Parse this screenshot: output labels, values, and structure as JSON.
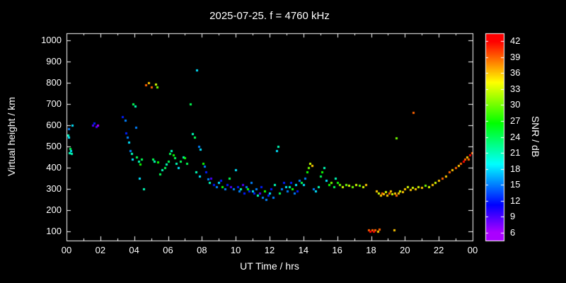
{
  "title": "2025-07-25. f = 4760 kHz",
  "colors": {
    "background": "#000000",
    "foreground": "#ffffff",
    "snr_low": "#9900ff",
    "snr_high": "#ff0000"
  },
  "chart_data": {
    "type": "scatter",
    "title": "2025-07-25. f = 4760 kHz",
    "xlabel": "UT Time / hrs",
    "ylabel": "Virtual height / km",
    "colorbar_label": "SNR / dB",
    "xlim": [
      0,
      24
    ],
    "ylim": [
      55,
      1035
    ],
    "xticks": [
      0,
      2,
      4,
      6,
      8,
      10,
      12,
      14,
      16,
      18,
      20,
      22,
      24
    ],
    "xticklabels": [
      "00",
      "02",
      "04",
      "06",
      "08",
      "10",
      "12",
      "14",
      "16",
      "18",
      "20",
      "22",
      "00"
    ],
    "yticks": [
      100,
      200,
      300,
      400,
      500,
      600,
      700,
      800,
      900,
      1000
    ],
    "grid": false,
    "marker": "square",
    "colorbar": {
      "min": 4.5,
      "max": 43.5,
      "ticks": [
        6,
        9,
        12,
        15,
        18,
        21,
        24,
        27,
        30,
        33,
        36,
        39,
        42
      ]
    },
    "points_format": [
      "ut_hours",
      "virtual_height_km",
      "snr_db"
    ],
    "points": [
      [
        0.08,
        555,
        21
      ],
      [
        0.12,
        545,
        18
      ],
      [
        0.17,
        470,
        21
      ],
      [
        0.2,
        490,
        24
      ],
      [
        0.25,
        480,
        18
      ],
      [
        0.3,
        465,
        21
      ],
      [
        0.35,
        600,
        18
      ],
      [
        0.12,
        585,
        15
      ],
      [
        1.55,
        600,
        9
      ],
      [
        1.65,
        610,
        12
      ],
      [
        1.75,
        595,
        9
      ],
      [
        1.85,
        600,
        6
      ],
      [
        3.3,
        640,
        12
      ],
      [
        3.45,
        625,
        15
      ],
      [
        3.5,
        565,
        12
      ],
      [
        3.6,
        545,
        15
      ],
      [
        3.7,
        520,
        18
      ],
      [
        3.75,
        480,
        15
      ],
      [
        3.85,
        465,
        21
      ],
      [
        3.9,
        440,
        18
      ],
      [
        3.95,
        700,
        24
      ],
      [
        4.05,
        690,
        21
      ],
      [
        4.1,
        590,
        15
      ],
      [
        4.15,
        450,
        24
      ],
      [
        4.25,
        430,
        21
      ],
      [
        4.35,
        415,
        27
      ],
      [
        4.45,
        440,
        24
      ],
      [
        4.55,
        300,
        21
      ],
      [
        4.3,
        350,
        18
      ],
      [
        4.7,
        790,
        39
      ],
      [
        4.85,
        800,
        36
      ],
      [
        5.0,
        780,
        39
      ],
      [
        5.25,
        795,
        33
      ],
      [
        5.35,
        780,
        30
      ],
      [
        5.1,
        440,
        24
      ],
      [
        5.2,
        430,
        21
      ],
      [
        5.4,
        425,
        27
      ],
      [
        5.5,
        370,
        24
      ],
      [
        5.65,
        390,
        21
      ],
      [
        5.8,
        400,
        24
      ],
      [
        5.9,
        415,
        21
      ],
      [
        6.0,
        430,
        24
      ],
      [
        6.1,
        465,
        24
      ],
      [
        6.2,
        480,
        21
      ],
      [
        6.3,
        460,
        27
      ],
      [
        6.4,
        445,
        24
      ],
      [
        6.5,
        420,
        21
      ],
      [
        6.6,
        400,
        18
      ],
      [
        6.75,
        430,
        24
      ],
      [
        6.9,
        450,
        21
      ],
      [
        7.0,
        445,
        27
      ],
      [
        7.1,
        420,
        24
      ],
      [
        7.3,
        700,
        24
      ],
      [
        7.45,
        560,
        21
      ],
      [
        7.55,
        545,
        24
      ],
      [
        7.7,
        860,
        18
      ],
      [
        7.8,
        500,
        15
      ],
      [
        7.9,
        485,
        18
      ],
      [
        7.65,
        380,
        21
      ],
      [
        7.85,
        360,
        18
      ],
      [
        8.05,
        420,
        27
      ],
      [
        8.15,
        405,
        15
      ],
      [
        8.25,
        380,
        12
      ],
      [
        8.35,
        345,
        15
      ],
      [
        8.45,
        330,
        21
      ],
      [
        8.55,
        350,
        9
      ],
      [
        8.7,
        320,
        12
      ],
      [
        8.85,
        310,
        15
      ],
      [
        9.0,
        330,
        18
      ],
      [
        9.1,
        340,
        12
      ],
      [
        9.2,
        310,
        27
      ],
      [
        9.35,
        300,
        15
      ],
      [
        9.5,
        320,
        12
      ],
      [
        9.6,
        350,
        24
      ],
      [
        9.7,
        310,
        9
      ],
      [
        9.85,
        300,
        15
      ],
      [
        10.0,
        390,
        18
      ],
      [
        10.1,
        310,
        12
      ],
      [
        10.2,
        290,
        15
      ],
      [
        10.3,
        300,
        21
      ],
      [
        10.4,
        320,
        9
      ],
      [
        10.5,
        280,
        12
      ],
      [
        10.6,
        310,
        15
      ],
      [
        10.7,
        300,
        27
      ],
      [
        10.8,
        290,
        12
      ],
      [
        10.9,
        330,
        15
      ],
      [
        11.0,
        290,
        18
      ],
      [
        11.1,
        280,
        12
      ],
      [
        11.2,
        300,
        15
      ],
      [
        11.3,
        270,
        21
      ],
      [
        11.4,
        280,
        9
      ],
      [
        11.5,
        310,
        12
      ],
      [
        11.6,
        260,
        15
      ],
      [
        11.7,
        290,
        27
      ],
      [
        11.8,
        250,
        15
      ],
      [
        11.9,
        270,
        12
      ],
      [
        12.0,
        280,
        18
      ],
      [
        12.1,
        300,
        12
      ],
      [
        12.2,
        260,
        15
      ],
      [
        12.3,
        320,
        21
      ],
      [
        12.4,
        480,
        18
      ],
      [
        12.5,
        500,
        21
      ],
      [
        12.6,
        280,
        24
      ],
      [
        12.7,
        300,
        15
      ],
      [
        12.85,
        330,
        12
      ],
      [
        12.95,
        310,
        18
      ],
      [
        13.05,
        290,
        15
      ],
      [
        13.15,
        310,
        21
      ],
      [
        13.25,
        330,
        12
      ],
      [
        13.35,
        300,
        27
      ],
      [
        13.45,
        280,
        15
      ],
      [
        13.55,
        320,
        18
      ],
      [
        13.65,
        290,
        12
      ],
      [
        13.75,
        340,
        15
      ],
      [
        13.9,
        330,
        24
      ],
      [
        14.0,
        320,
        18
      ],
      [
        14.1,
        350,
        15
      ],
      [
        14.2,
        380,
        27
      ],
      [
        14.3,
        400,
        30
      ],
      [
        14.4,
        420,
        33
      ],
      [
        14.5,
        410,
        36
      ],
      [
        14.6,
        300,
        15
      ],
      [
        14.7,
        290,
        18
      ],
      [
        14.9,
        310,
        21
      ],
      [
        15.0,
        360,
        24
      ],
      [
        15.1,
        380,
        27
      ],
      [
        15.2,
        400,
        21
      ],
      [
        15.35,
        340,
        18
      ],
      [
        15.5,
        320,
        27
      ],
      [
        15.65,
        330,
        30
      ],
      [
        15.8,
        310,
        24
      ],
      [
        15.9,
        350,
        21
      ],
      [
        16.0,
        330,
        27
      ],
      [
        16.15,
        320,
        30
      ],
      [
        16.3,
        310,
        33
      ],
      [
        16.5,
        320,
        30
      ],
      [
        16.7,
        315,
        33
      ],
      [
        16.9,
        310,
        30
      ],
      [
        17.1,
        320,
        33
      ],
      [
        17.3,
        315,
        30
      ],
      [
        17.5,
        310,
        33
      ],
      [
        17.7,
        320,
        36
      ],
      [
        17.85,
        105,
        39
      ],
      [
        17.95,
        100,
        42
      ],
      [
        18.05,
        105,
        39
      ],
      [
        18.15,
        100,
        42
      ],
      [
        18.25,
        105,
        39
      ],
      [
        18.4,
        100,
        36
      ],
      [
        18.5,
        110,
        39
      ],
      [
        19.35,
        105,
        36
      ],
      [
        18.3,
        290,
        36
      ],
      [
        18.45,
        280,
        33
      ],
      [
        18.55,
        270,
        36
      ],
      [
        18.65,
        280,
        39
      ],
      [
        18.75,
        275,
        36
      ],
      [
        18.85,
        285,
        33
      ],
      [
        18.95,
        270,
        36
      ],
      [
        19.05,
        280,
        39
      ],
      [
        19.15,
        290,
        36
      ],
      [
        19.25,
        275,
        33
      ],
      [
        19.4,
        280,
        36
      ],
      [
        19.5,
        270,
        39
      ],
      [
        19.6,
        280,
        36
      ],
      [
        19.7,
        290,
        33
      ],
      [
        19.85,
        285,
        36
      ],
      [
        19.5,
        540,
        30
      ],
      [
        20.5,
        660,
        39
      ],
      [
        20.0,
        300,
        36
      ],
      [
        20.15,
        310,
        33
      ],
      [
        20.3,
        295,
        36
      ],
      [
        20.45,
        305,
        33
      ],
      [
        20.6,
        300,
        36
      ],
      [
        20.8,
        310,
        33
      ],
      [
        21.0,
        305,
        36
      ],
      [
        21.2,
        315,
        30
      ],
      [
        21.4,
        310,
        33
      ],
      [
        21.6,
        320,
        36
      ],
      [
        21.8,
        330,
        33
      ],
      [
        22.0,
        340,
        36
      ],
      [
        22.2,
        350,
        39
      ],
      [
        22.4,
        360,
        36
      ],
      [
        22.6,
        380,
        39
      ],
      [
        22.8,
        390,
        36
      ],
      [
        23.0,
        400,
        39
      ],
      [
        23.15,
        410,
        36
      ],
      [
        23.3,
        420,
        39
      ],
      [
        23.45,
        430,
        42
      ],
      [
        23.55,
        440,
        39
      ],
      [
        23.65,
        450,
        36
      ],
      [
        23.75,
        440,
        39
      ],
      [
        23.85,
        460,
        42
      ],
      [
        23.95,
        470,
        39
      ]
    ]
  }
}
